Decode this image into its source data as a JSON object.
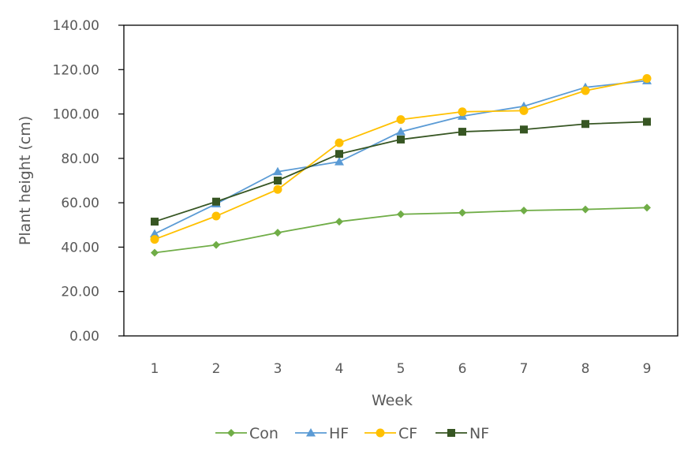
{
  "chart_data": {
    "type": "line",
    "title": "",
    "xlabel": "Week",
    "ylabel": "Plant height (cm)",
    "x": [
      1,
      2,
      3,
      4,
      5,
      6,
      7,
      8,
      9
    ],
    "x_tick_labels": [
      "1",
      "2",
      "3",
      "4",
      "5",
      "6",
      "7",
      "8",
      "9"
    ],
    "ylim": [
      0,
      140
    ],
    "y_ticks": [
      0,
      20,
      40,
      60,
      80,
      100,
      120,
      140
    ],
    "y_tick_labels": [
      "0.00",
      "20.00",
      "40.00",
      "60.00",
      "80.00",
      "100.00",
      "120.00",
      "140.00"
    ],
    "grid": false,
    "legend_position": "bottom",
    "series": [
      {
        "name": "Con",
        "marker": "diamond",
        "color": "#70AD47",
        "values": [
          37.5,
          41,
          46.5,
          51.5,
          54.8,
          55.5,
          56.5,
          57,
          57.8
        ]
      },
      {
        "name": "HF",
        "marker": "triangle",
        "color": "#5B9BD5",
        "values": [
          46,
          59.5,
          74,
          78.5,
          92,
          99,
          103.5,
          112,
          115
        ]
      },
      {
        "name": "CF",
        "marker": "circle",
        "color": "#FFC000",
        "values": [
          43.5,
          54,
          66,
          87,
          97.5,
          101,
          101.5,
          110.5,
          116
        ]
      },
      {
        "name": "NF",
        "marker": "square",
        "color": "#375623",
        "values": [
          51.5,
          60.5,
          70,
          82,
          88.5,
          92,
          93,
          95.5,
          96.5
        ]
      }
    ]
  }
}
